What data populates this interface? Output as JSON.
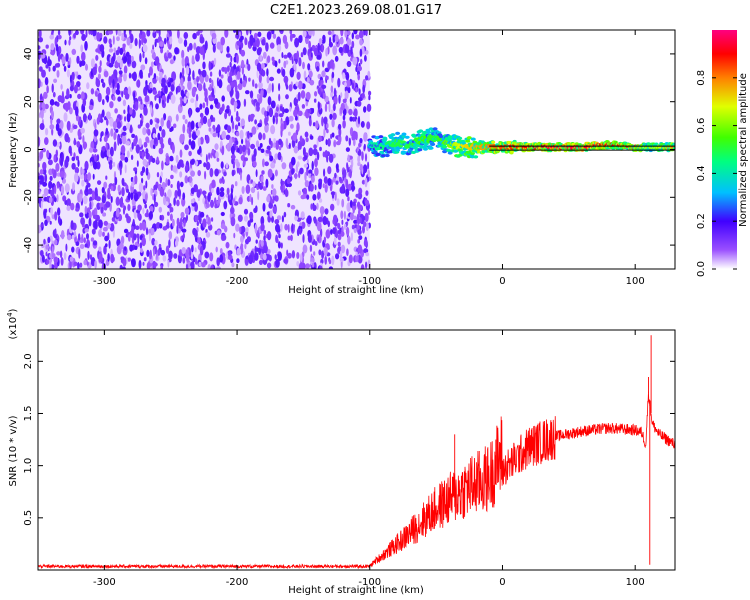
{
  "title": "C2E1.2023.269.08.01.G17",
  "chart_data": [
    {
      "type": "heatmap",
      "xlabel": "Height of straight line (km)",
      "ylabel": "Frequency (Hz)",
      "xlim": [
        -350,
        130
      ],
      "ylim": [
        -50,
        50
      ],
      "x_ticks": [
        -300,
        -200,
        -100,
        0,
        100
      ],
      "y_ticks": [
        -40,
        -20,
        0,
        20,
        40
      ],
      "noise_region": {
        "x_range": [
          -350,
          -100
        ],
        "y_range": [
          -50,
          50
        ],
        "level": 0.15
      },
      "signal_trace": {
        "x": [
          -100,
          -90,
          -80,
          -70,
          -60,
          -50,
          -40,
          -30,
          -20,
          -10,
          0,
          20,
          40,
          60,
          80,
          100,
          110,
          130
        ],
        "y_center": [
          2,
          1,
          3,
          2,
          4,
          5,
          2,
          1,
          1,
          1,
          1,
          1,
          1,
          1,
          2,
          1,
          1,
          1
        ],
        "amplitude": [
          0.4,
          0.45,
          0.5,
          0.5,
          0.55,
          0.5,
          0.6,
          0.7,
          0.75,
          0.8,
          0.85,
          0.9,
          0.95,
          0.95,
          0.9,
          0.85,
          0.6,
          0.8
        ]
      },
      "colorbar": {
        "label": "Normalized spectral amplitude",
        "range": [
          0,
          1
        ],
        "ticks": [
          0.0,
          0.2,
          0.4,
          0.6,
          0.8
        ]
      },
      "grid": false
    },
    {
      "type": "line",
      "xlabel": "Height of straight line (km)",
      "ylabel": "SNR (10 * v/v)",
      "exponent_label": "(x10",
      "exponent_power": "4",
      "exponent_close": ")",
      "xlim": [
        -350,
        130
      ],
      "ylim": [
        0,
        23000
      ],
      "x_ticks": [
        -300,
        -200,
        -100,
        0,
        100
      ],
      "y_ticks": [
        5000,
        10000,
        15000,
        20000
      ],
      "y_tick_labels": [
        "0.5",
        "1.0",
        "1.5",
        "2.0"
      ],
      "color": "#ff0000",
      "envelope": {
        "x": [
          -350,
          -100,
          -75,
          -50,
          -30,
          -10,
          0,
          20,
          40,
          60,
          80,
          100,
          105,
          108,
          110,
          113,
          118,
          130
        ],
        "y": [
          350,
          350,
          2500,
          5000,
          6500,
          7500,
          9500,
          11800,
          12800,
          13300,
          13600,
          13400,
          13200,
          12000,
          17000,
          14000,
          13000,
          12000
        ]
      },
      "spikes": [
        {
          "x": -36,
          "y": 13000
        },
        {
          "x": -5,
          "y": 12500
        },
        {
          "x": 110,
          "y": 18500
        },
        {
          "x": 112,
          "y": 22500
        },
        {
          "x": 111,
          "y": 500
        }
      ],
      "grid": false
    }
  ]
}
